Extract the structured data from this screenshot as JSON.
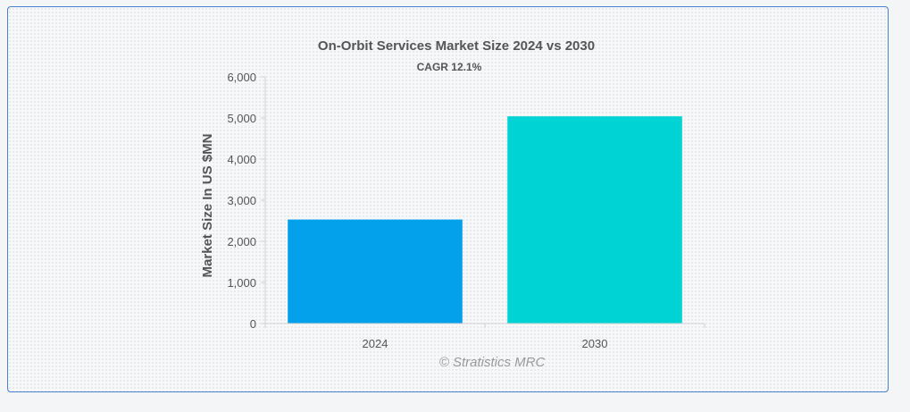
{
  "chart_data": {
    "type": "bar",
    "title": "On-Orbit Services Market Size 2024 vs 2030",
    "subtitle": "CAGR 12.1%",
    "xlabel": "",
    "ylabel": "Market Size In US $MN",
    "categories": [
      "2024",
      "2030"
    ],
    "values": [
      2530,
      5040
    ],
    "bar_colors": [
      "#03a0ec",
      "#00d3d3"
    ],
    "ylim": [
      0,
      6000
    ],
    "yticks": [
      0,
      1000,
      2000,
      3000,
      4000,
      5000,
      6000
    ],
    "ytick_labels": [
      "0",
      "1,000",
      "2,000",
      "3,000",
      "4,000",
      "5,000",
      "6,000"
    ],
    "grid": false
  },
  "watermark": "© Stratistics MRC"
}
